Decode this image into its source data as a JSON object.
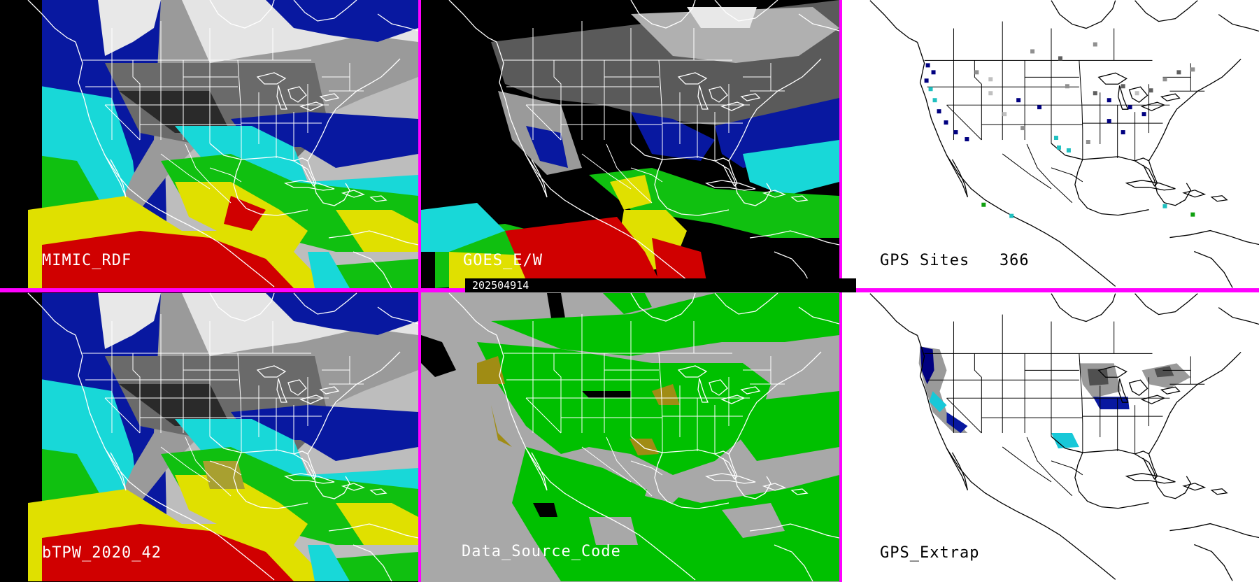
{
  "panels": [
    {
      "id": "mimic",
      "label": "MIMIC_RDF"
    },
    {
      "id": "goes",
      "label": "GOES_E/W"
    },
    {
      "id": "gps-sites",
      "label": "GPS Sites   366"
    },
    {
      "id": "btpw",
      "label": "bTPW_2020_42"
    },
    {
      "id": "datasource",
      "label": "Data_Source_Code"
    },
    {
      "id": "gps-extrap",
      "label": "GPS_Extrap"
    }
  ],
  "timestamp": "202504914",
  "colors": {
    "divider": "#ff00ff",
    "tpw_scale": [
      "#000000",
      "#4a4a4a",
      "#9a9a9a",
      "#dcdcdc",
      "#000080",
      "#1030d0",
      "#20e0e0",
      "#10c010",
      "#e0e000",
      "#d00000"
    ],
    "datasource_land_ocean": "#a8a8a8",
    "datasource_green": "#00c000",
    "datasource_olive": "#a08c14",
    "gps_background": "#ffffff",
    "map_lines": "#ffffff"
  },
  "icons": [
    "state-boundary-map",
    "coastline-map"
  ]
}
